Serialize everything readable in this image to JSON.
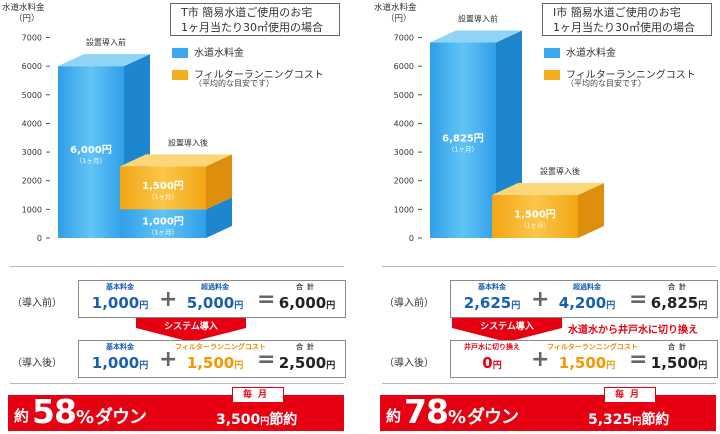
{
  "colors": {
    "water": "#3aa9ee",
    "filter": "#f4ad1d",
    "red": "#e60012",
    "blue_text": "#1b5fb0",
    "orange_text": "#f39800"
  },
  "legend": {
    "water": "水道水料金",
    "filter": "フィルターランニングコスト",
    "filter_note": "（平均的な目安です）"
  },
  "row_labels": {
    "before": "（導入前）",
    "after": "（導入後）"
  },
  "panels": [
    {
      "case_line1": "T市 簡易水道ご使用のお宅",
      "case_line2": "1ヶ月当たり30㎥使用の場合",
      "before_calc": {
        "a_label": "基本料金",
        "a_value": "1,000",
        "a_unit": "円",
        "b_label": "超過料金",
        "b_value": "5,000",
        "b_unit": "円",
        "total_label": "合計",
        "total_value": "6,000",
        "total_unit": "円"
      },
      "arrow_text": "システム導入",
      "arrow_note": "",
      "after_calc": {
        "a_label": "基本料金",
        "a_value": "1,000",
        "a_unit": "円",
        "b_label": "フィルターランニングコスト",
        "b_value": "1,500",
        "b_unit": "円",
        "total_label": "合計",
        "total_value": "2,500",
        "total_unit": "円"
      },
      "banner": {
        "yaku": "約",
        "percent": "58",
        "pct_sign": "%",
        "down": "ダウン",
        "tag": "毎月",
        "saving": "3,500",
        "saving_unit": "円",
        "saving_suffix": "節約"
      }
    },
    {
      "case_line1": "I市 簡易水道ご使用のお宅",
      "case_line2": "1ヶ月当たり30㎥使用の場合",
      "before_calc": {
        "a_label": "基本料金",
        "a_value": "2,625",
        "a_unit": "円",
        "b_label": "超過料金",
        "b_value": "4,200",
        "b_unit": "円",
        "total_label": "合計",
        "total_value": "6,825",
        "total_unit": "円"
      },
      "arrow_text": "システム導入",
      "arrow_note": "水道水から井戸水に切り換え",
      "after_calc": {
        "a_label": "井戸水に切り換え",
        "a_value": "0",
        "a_unit": "円",
        "b_label": "フィルターランニングコスト",
        "b_value": "1,500",
        "b_unit": "円",
        "total_label": "合計",
        "total_value": "1,500",
        "total_unit": "円"
      },
      "banner": {
        "yaku": "約",
        "percent": "78",
        "pct_sign": "%",
        "down": "ダウン",
        "tag": "毎月",
        "saving": "5,325",
        "saving_unit": "円",
        "saving_suffix": "節約"
      }
    }
  ],
  "chart_data": [
    {
      "type": "bar",
      "ylabel": "水道水料金",
      "yunit": "（円）",
      "ylim": [
        0,
        7000
      ],
      "yticks": [
        0,
        1000,
        2000,
        3000,
        4000,
        5000,
        6000,
        7000
      ],
      "grid": false,
      "categories": [
        "設置導入前",
        "設置導入後"
      ],
      "series": [
        {
          "name": "水道水料金",
          "values": [
            6000,
            1000
          ],
          "labels": [
            "6,000",
            "1,000"
          ]
        },
        {
          "name": "フィルターランニングコスト",
          "values": [
            0,
            1500
          ],
          "labels": [
            "",
            "1,500"
          ]
        }
      ],
      "value_unit": "円",
      "value_period": "（1ヶ月）"
    },
    {
      "type": "bar",
      "ylabel": "水道水料金",
      "yunit": "（円）",
      "ylim": [
        0,
        7000
      ],
      "yticks": [
        0,
        1000,
        2000,
        3000,
        4000,
        5000,
        6000,
        7000
      ],
      "grid": false,
      "categories": [
        "設置導入前",
        "設置導入後"
      ],
      "series": [
        {
          "name": "水道水料金",
          "values": [
            6825,
            0
          ],
          "labels": [
            "6,825",
            ""
          ]
        },
        {
          "name": "フィルターランニングコスト",
          "values": [
            0,
            1500
          ],
          "labels": [
            "",
            "1,500"
          ]
        }
      ],
      "value_unit": "円",
      "value_period": "（1ヶ月）"
    }
  ]
}
